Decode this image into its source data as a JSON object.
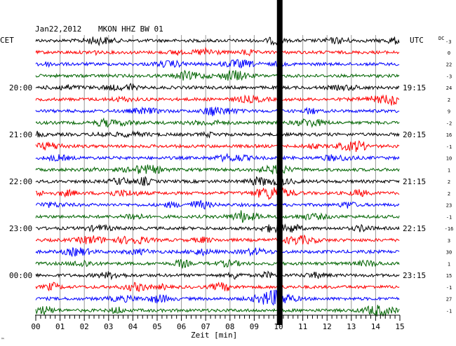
{
  "header": {
    "date": "Jan22,2012",
    "station": "MKON HHZ BW 01",
    "left_tz": "CET",
    "right_tz": "UTC",
    "dc_label": "DC",
    "dc_sub": "-3"
  },
  "axis": {
    "xlabel": "Zeit [min]",
    "x_ticks": [
      "00",
      "01",
      "02",
      "03",
      "04",
      "05",
      "06",
      "07",
      "08",
      "09",
      "10",
      "11",
      "12",
      "13",
      "14",
      "15"
    ]
  },
  "footer_mark": "™",
  "chart_data": {
    "type": "line",
    "title": "Jan22,2012   MKON HHZ BW 01",
    "xlabel": "Zeit [min]",
    "xlim": [
      0,
      15
    ],
    "trace_minutes_per_row": 15,
    "left_time_labels": [
      {
        "row": 4,
        "label": "20:00"
      },
      {
        "row": 8,
        "label": "21:00"
      },
      {
        "row": 12,
        "label": "22:00"
      },
      {
        "row": 16,
        "label": "23:00"
      },
      {
        "row": 20,
        "label": "00:00"
      }
    ],
    "right_time_labels": [
      {
        "row": 4,
        "label": "19:15"
      },
      {
        "row": 8,
        "label": "20:15"
      },
      {
        "row": 12,
        "label": "21:15"
      },
      {
        "row": 16,
        "label": "22:15"
      },
      {
        "row": 20,
        "label": "23:15"
      }
    ],
    "dc_offsets": [
      "0",
      "22",
      "-3",
      "24",
      "2",
      "9",
      "-2",
      "16",
      "-1",
      "10",
      "1",
      "2",
      "2",
      "23",
      "-1",
      "-16",
      "3",
      "30",
      "1",
      "15",
      "-1",
      "27",
      "-1"
    ],
    "row_colors": [
      "#000000",
      "#ff0000",
      "#0000ff",
      "#006400"
    ],
    "row_count": 24,
    "current_time_marker_minute": 10.05,
    "event_rows": [
      13,
      22
    ]
  }
}
